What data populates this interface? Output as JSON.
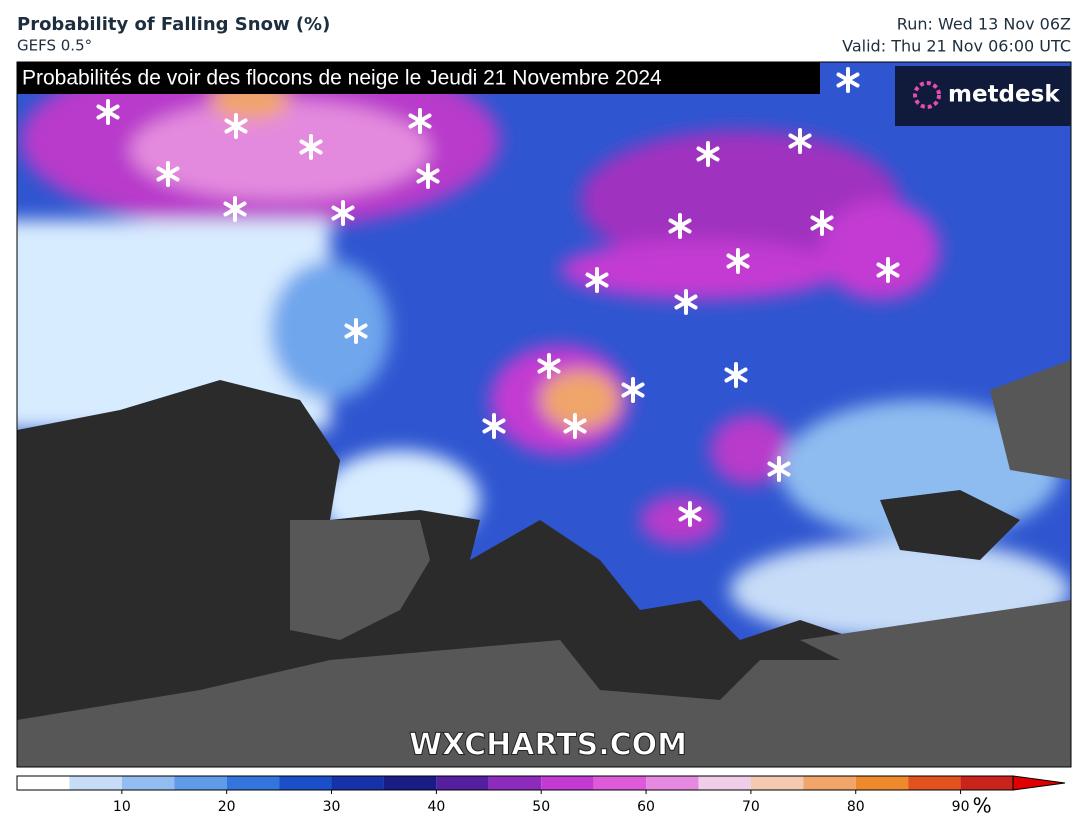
{
  "header": {
    "title": "Probability of Falling Snow (%)",
    "model": "GEFS 0.5°",
    "run": "Run: Wed 13 Nov 06Z",
    "valid": "Valid: Thu 21 Nov 06:00 UTC"
  },
  "map": {
    "caption": "Probabilités de voir des flocons de neige le Jeudi 21 Novembre 2024",
    "logo": "metdesk",
    "watermark": "WXCHARTS.COM"
  },
  "legend": {
    "bins": [
      0,
      5,
      10,
      15,
      20,
      25,
      30,
      35,
      40,
      45,
      50,
      55,
      60,
      65,
      70,
      75,
      80,
      85,
      90,
      95
    ],
    "colors": [
      "#ffffff",
      "#c6dcf7",
      "#93bdf1",
      "#5f9be8",
      "#3374dd",
      "#1b4fc9",
      "#1632a8",
      "#1a1c86",
      "#5420a0",
      "#8c2bbc",
      "#c33ad2",
      "#dd5ad8",
      "#e58ae0",
      "#f0cde8",
      "#f3c9b2",
      "#f0a56a",
      "#ee8a2b",
      "#e2521f",
      "#c8241b"
    ],
    "arrow_color": "#e00000",
    "ticks": [
      10,
      20,
      30,
      40,
      50,
      60,
      70,
      80,
      90
    ],
    "unit": "%"
  }
}
